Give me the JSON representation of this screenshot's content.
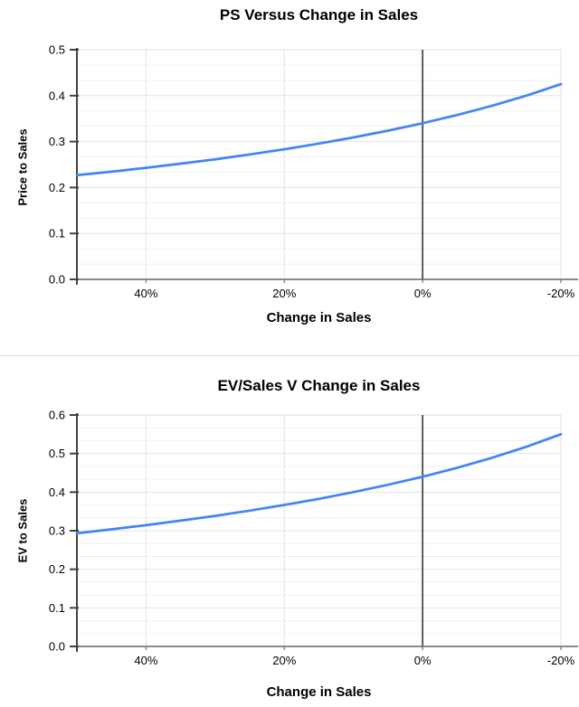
{
  "colors": {
    "line": "#4285f4",
    "grid_major": "#e2e2e2",
    "grid_minor": "#f1f1f1",
    "axis": "#424242",
    "baseline": "#8a8a8a",
    "zero_line": "#4a4a4a",
    "tick_text": "#000000",
    "divider": "#d9d9d9",
    "background": "#ffffff"
  },
  "chart_data": [
    {
      "type": "line",
      "title": "PS Versus Change in Sales",
      "xlabel": "Change in Sales",
      "ylabel": "Price to Sales",
      "x_axis_reversed": true,
      "x_range_pct": [
        50,
        -20
      ],
      "x_ticks": [
        {
          "label": "40%",
          "value": 40
        },
        {
          "label": "20%",
          "value": 20
        },
        {
          "label": "0%",
          "value": 0
        },
        {
          "label": "-20%",
          "value": -20
        }
      ],
      "ylim": [
        0,
        0.5
      ],
      "y_ticks": [
        {
          "label": "0.0",
          "value": 0.0
        },
        {
          "label": "0.1",
          "value": 0.1
        },
        {
          "label": "0.2",
          "value": 0.2
        },
        {
          "label": "0.3",
          "value": 0.3
        },
        {
          "label": "0.4",
          "value": 0.4
        },
        {
          "label": "0.5",
          "value": 0.5
        }
      ],
      "minor_divisions_per_major": 3,
      "grid": true,
      "legend": "none",
      "zero_reference_line_x": 0,
      "series": [
        {
          "name": "Price to Sales",
          "x_pct": [
            50,
            45,
            40,
            35,
            30,
            25,
            20,
            15,
            10,
            5,
            0,
            -5,
            -10,
            -15,
            -20
          ],
          "values": [
            0.2267,
            0.2345,
            0.2429,
            0.2519,
            0.2615,
            0.272,
            0.2833,
            0.2957,
            0.3091,
            0.3238,
            0.34,
            0.3579,
            0.3778,
            0.4,
            0.425
          ]
        }
      ]
    },
    {
      "type": "line",
      "title": "EV/Sales V Change in Sales",
      "xlabel": "Change in Sales",
      "ylabel": "EV to Sales",
      "x_axis_reversed": true,
      "x_range_pct": [
        50,
        -20
      ],
      "x_ticks": [
        {
          "label": "40%",
          "value": 40
        },
        {
          "label": "20%",
          "value": 20
        },
        {
          "label": "0%",
          "value": 0
        },
        {
          "label": "-20%",
          "value": -20
        }
      ],
      "ylim": [
        0,
        0.6
      ],
      "y_ticks": [
        {
          "label": "0.0",
          "value": 0.0
        },
        {
          "label": "0.1",
          "value": 0.1
        },
        {
          "label": "0.2",
          "value": 0.2
        },
        {
          "label": "0.3",
          "value": 0.3
        },
        {
          "label": "0.4",
          "value": 0.4
        },
        {
          "label": "0.5",
          "value": 0.5
        },
        {
          "label": "0.6",
          "value": 0.6
        }
      ],
      "minor_divisions_per_major": 3,
      "grid": true,
      "legend": "none",
      "zero_reference_line_x": 0,
      "series": [
        {
          "name": "EV to Sales",
          "x_pct": [
            50,
            45,
            40,
            35,
            30,
            25,
            20,
            15,
            10,
            5,
            0,
            -5,
            -10,
            -15,
            -20
          ],
          "values": [
            0.2933,
            0.3034,
            0.3143,
            0.3259,
            0.3385,
            0.352,
            0.3667,
            0.3826,
            0.4,
            0.419,
            0.44,
            0.4632,
            0.4889,
            0.5176,
            0.55
          ]
        }
      ]
    }
  ]
}
